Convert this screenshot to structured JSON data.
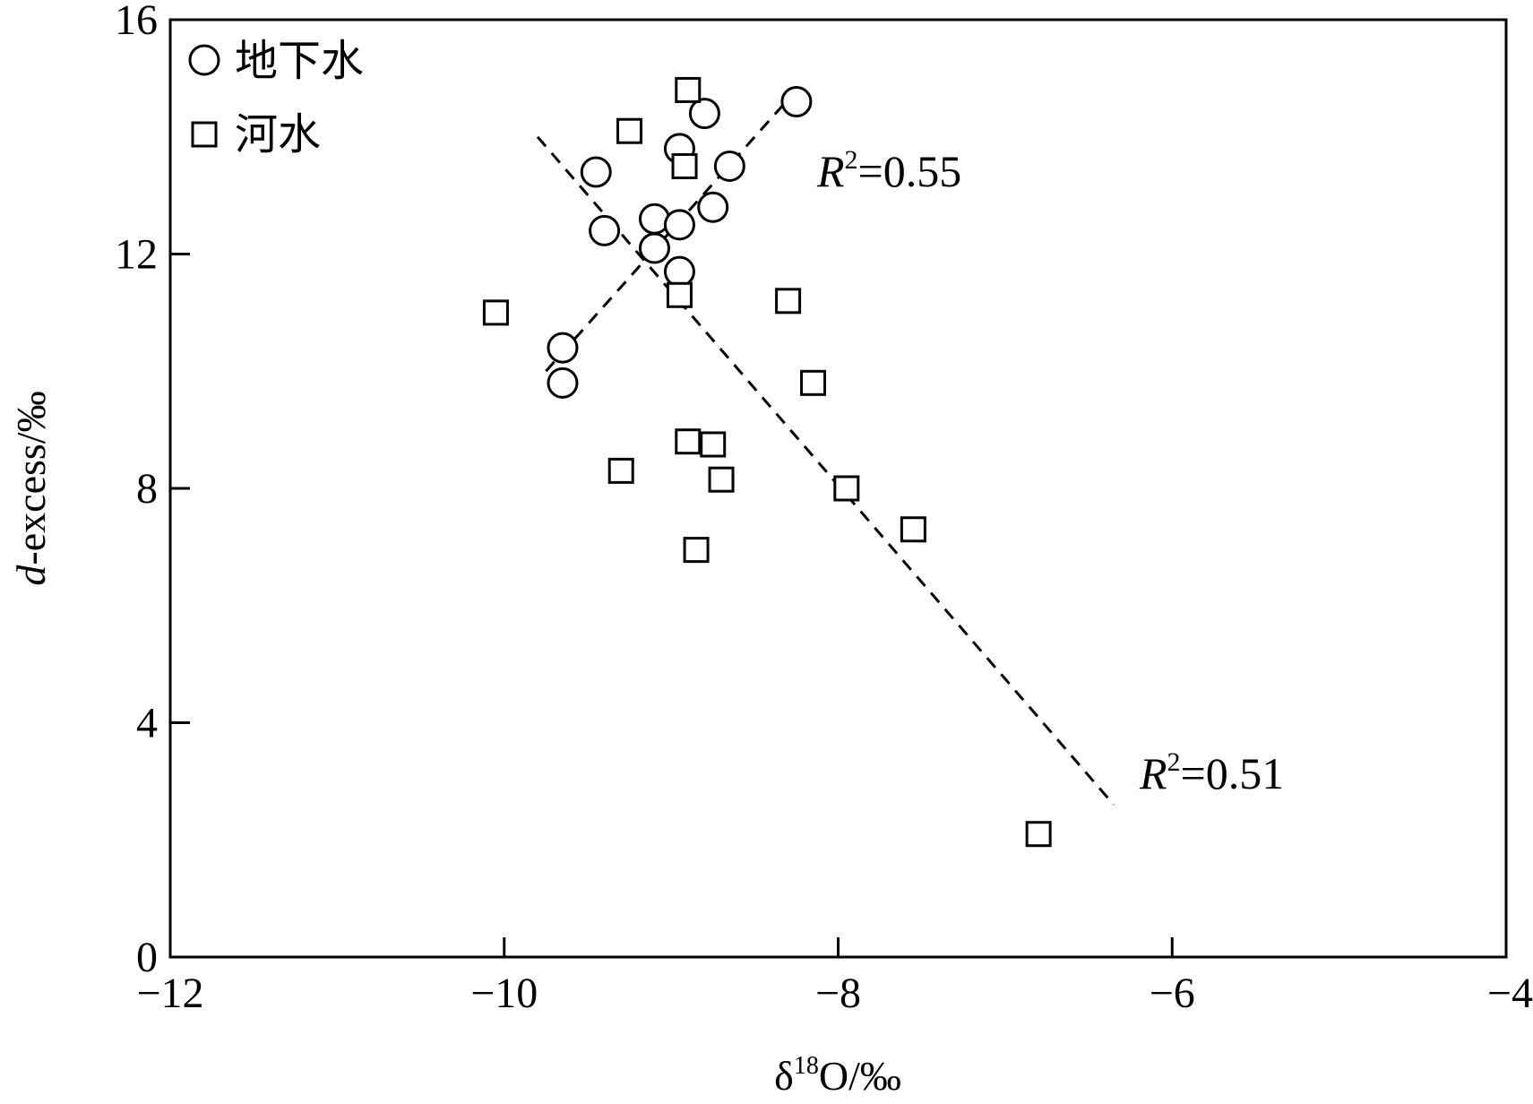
{
  "chart_data": {
    "type": "scatter",
    "xlabel": "δ18O/‰",
    "xlabel_main": "δ",
    "xlabel_sup": "18",
    "xlabel_rest": "O/‰",
    "ylabel": "d-excess/‰",
    "ylabel_italic": "d",
    "ylabel_rest": "-excess/‰",
    "xlim": [
      -12,
      -4
    ],
    "ylim": [
      0,
      16
    ],
    "x_ticks": [
      -12,
      -10,
      -8,
      -6,
      -4
    ],
    "y_ticks": [
      0,
      4,
      8,
      12,
      16
    ],
    "x_tick_labels": [
      "−12",
      "−10",
      "−8",
      "−6",
      "−4"
    ],
    "y_tick_labels": [
      "0",
      "4",
      "8",
      "12",
      "16"
    ],
    "legend_position": "top-left",
    "grid": false,
    "series": [
      {
        "name": "地下水",
        "marker": "circle",
        "points": [
          [
            -8.25,
            14.6
          ],
          [
            -8.8,
            14.4
          ],
          [
            -8.95,
            13.8
          ],
          [
            -9.45,
            13.4
          ],
          [
            -8.65,
            13.5
          ],
          [
            -8.75,
            12.8
          ],
          [
            -9.1,
            12.6
          ],
          [
            -8.95,
            12.5
          ],
          [
            -9.4,
            12.4
          ],
          [
            -9.1,
            12.1
          ],
          [
            -8.95,
            11.7
          ],
          [
            -9.65,
            10.4
          ],
          [
            -9.65,
            9.8
          ]
        ]
      },
      {
        "name": "河水",
        "marker": "square",
        "points": [
          [
            -8.9,
            14.8
          ],
          [
            -9.25,
            14.1
          ],
          [
            -8.92,
            13.5
          ],
          [
            -8.95,
            11.3
          ],
          [
            -10.05,
            11.0
          ],
          [
            -8.3,
            11.2
          ],
          [
            -8.15,
            9.8
          ],
          [
            -8.9,
            8.8
          ],
          [
            -8.75,
            8.75
          ],
          [
            -9.3,
            8.3
          ],
          [
            -8.7,
            8.15
          ],
          [
            -7.95,
            8.0
          ],
          [
            -7.55,
            7.3
          ],
          [
            -8.85,
            6.95
          ],
          [
            -6.8,
            2.1
          ]
        ]
      }
    ],
    "fit_lines": [
      {
        "series": "地下水",
        "x": [
          -9.75,
          -8.25
        ],
        "y": [
          10.0,
          14.8
        ],
        "label_prefix": "R",
        "label_sup": "2",
        "label_value": "=0.55"
      },
      {
        "series": "河水",
        "x": [
          -9.8,
          -6.35
        ],
        "y": [
          14.0,
          2.6
        ],
        "label_prefix": "R",
        "label_sup": "2",
        "label_value": "=0.51"
      }
    ]
  }
}
